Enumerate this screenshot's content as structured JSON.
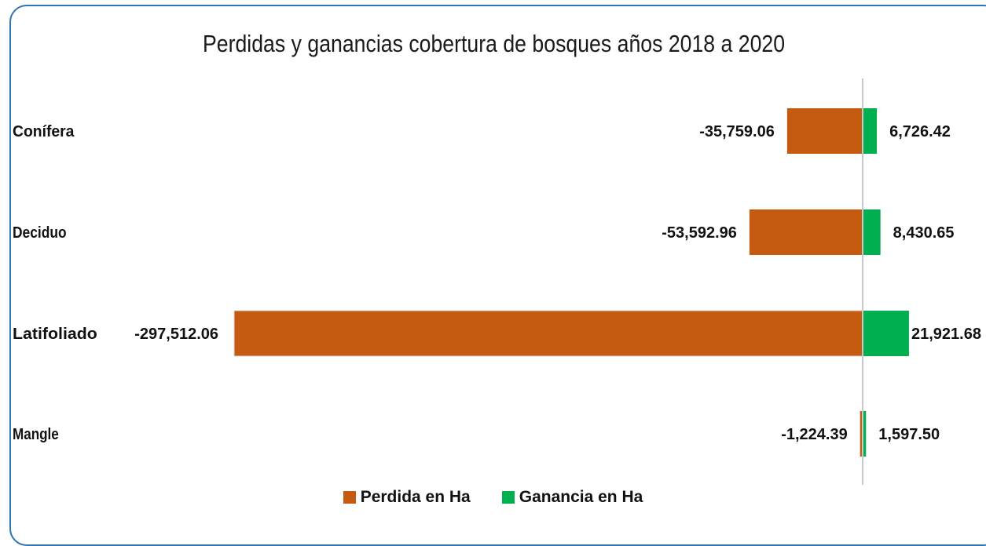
{
  "chart_data": {
    "type": "bar",
    "orientation": "horizontal",
    "stacked": true,
    "title": "Perdidas y ganancias cobertura de bosques años 2018 a 2020",
    "categories": [
      "Conífera",
      "Deciduo",
      "Latifoliado",
      "Mangle"
    ],
    "series": [
      {
        "name": "Perdida en Ha",
        "color": "#c55a11",
        "values": [
          -35759.06,
          -53592.96,
          -297512.06,
          -1224.39
        ],
        "labels": [
          "-35,759.06",
          "-53,592.96",
          "-297,512.06",
          "-1,224.39"
        ]
      },
      {
        "name": "Ganancia en Ha",
        "color": "#00b050",
        "values": [
          6726.42,
          8430.65,
          21921.68,
          1597.5
        ],
        "labels": [
          "6,726.42",
          "8,430.65",
          "21,921.68",
          "1,597.50"
        ]
      }
    ],
    "xlim": [
      -297512.06,
      21921.68
    ],
    "grid": false,
    "legend_position": "bottom"
  }
}
